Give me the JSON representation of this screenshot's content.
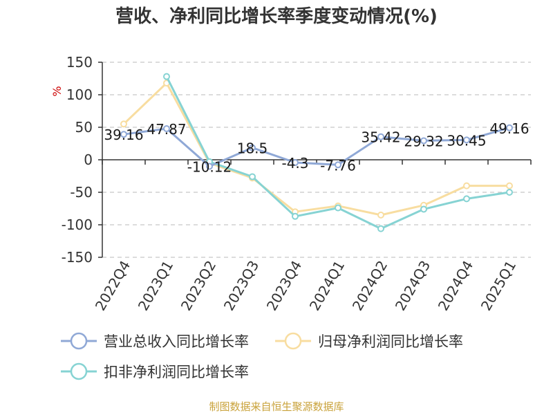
{
  "chart_data": {
    "type": "line",
    "title": "营收、净利同比增长率季度变动情况(%)",
    "unit": "%",
    "categories": [
      "2022Q4",
      "2023Q1",
      "2023Q2",
      "2023Q3",
      "2023Q4",
      "2024Q1",
      "2024Q2",
      "2024Q3",
      "2024Q4",
      "2025Q1"
    ],
    "ylim": [
      -150,
      150
    ],
    "yticks": [
      150,
      100,
      50,
      0,
      -50,
      -100,
      -150
    ],
    "grid": true,
    "legend_position": "bottom",
    "series": [
      {
        "name": "营业总收入同比增长率",
        "color": "#8fa8d6",
        "values": [
          39.16,
          47.87,
          -10.12,
          18.5,
          -4.3,
          -7.76,
          35.42,
          29.32,
          30.45,
          49.16
        ],
        "labels": [
          "39.16",
          "47.87",
          "-10.12",
          "18.5",
          "-4.3",
          "-7.76",
          "35.42",
          "29.32",
          "30.45",
          "49.16"
        ]
      },
      {
        "name": "归母净利润同比增长率",
        "color": "#f8dda0",
        "values": [
          55,
          118,
          -5,
          -28,
          -80,
          -71,
          -85,
          -70,
          -40,
          -40
        ]
      },
      {
        "name": "扣非净利润同比增长率",
        "color": "#86d3d3",
        "values": [
          null,
          128,
          -3,
          -26,
          -87,
          -74,
          -106,
          -76,
          -60,
          -50
        ]
      }
    ]
  },
  "source": "制图数据来自恒生聚源数据库"
}
